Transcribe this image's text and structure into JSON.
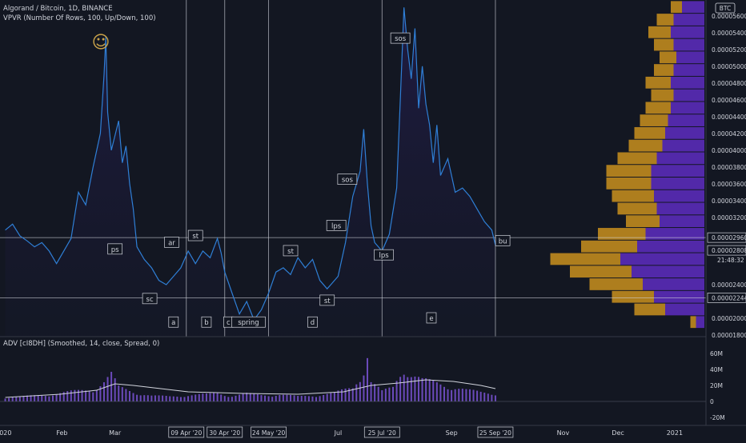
{
  "header": {
    "symbol_line": "Algorand / Bitcoin, 1D, BINANCE",
    "indicator_line": "VPVR (Number Of Rows, 100, Up/Down, 100)",
    "adv_line": "ADV [cI8DH] (Smoothed, 14, close, Spread, 0)"
  },
  "currency_badge": "BTC",
  "countdown": "21:48:32",
  "smiley": "☺",
  "price_axis": {
    "ticks": [
      "0.00005600",
      "0.00005400",
      "0.00005200",
      "0.00005000",
      "0.00004800",
      "0.00004600",
      "0.00004400",
      "0.00004200",
      "0.00004000",
      "0.00003800",
      "0.00003600",
      "0.00003400",
      "0.00003200",
      "0.00002800",
      "0.00002400",
      "0.00002000",
      "0.00001800"
    ],
    "tick_values": [
      5.6,
      5.4,
      5.2,
      5.0,
      4.8,
      4.6,
      4.4,
      4.2,
      4.0,
      3.8,
      3.6,
      3.4,
      3.2,
      2.8,
      2.4,
      2.0,
      1.8
    ],
    "highlighted": [
      {
        "label": "0.00002960",
        "value": 2.96
      },
      {
        "label": "0.00002808",
        "value": 2.808
      },
      {
        "label": "0.00002244",
        "value": 2.244
      }
    ],
    "range": [
      1.8,
      5.75
    ]
  },
  "volume_axis": {
    "ticks": [
      "60M",
      "40M",
      "20M",
      "0",
      "-20M"
    ],
    "tick_values": [
      60,
      40,
      20,
      0,
      -20
    ],
    "range": [
      -25,
      75
    ]
  },
  "time_axis": {
    "months": [
      {
        "label": "2020",
        "day": -1
      },
      {
        "label": "Feb",
        "day": 31
      },
      {
        "label": "Mar",
        "day": 60
      },
      {
        "label": "Jul",
        "day": 182
      },
      {
        "label": "Sep",
        "day": 244
      },
      {
        "label": "Nov",
        "day": 305
      },
      {
        "label": "Dec",
        "day": 335
      },
      {
        "label": "2021",
        "day": 366
      }
    ],
    "date_labels": [
      {
        "label": "09 Apr '20",
        "day": 99
      },
      {
        "label": "30 Apr '20",
        "day": 120
      },
      {
        "label": "24 May '20",
        "day": 144
      },
      {
        "label": "25 Jul '20",
        "day": 206
      },
      {
        "label": "25 Sep '20",
        "day": 268
      }
    ]
  },
  "chart_data": {
    "type": "line",
    "title": "Algorand / Bitcoin, 1D, BINANCE",
    "price_unit": "BTC (×1e-5)",
    "x_unit": "day of year 2020",
    "price_series": [
      {
        "day": 0,
        "price": 3.05
      },
      {
        "day": 4,
        "price": 3.12
      },
      {
        "day": 8,
        "price": 2.98
      },
      {
        "day": 12,
        "price": 2.92
      },
      {
        "day": 16,
        "price": 2.85
      },
      {
        "day": 20,
        "price": 2.9
      },
      {
        "day": 24,
        "price": 2.8
      },
      {
        "day": 28,
        "price": 2.65
      },
      {
        "day": 32,
        "price": 2.8
      },
      {
        "day": 36,
        "price": 2.95
      },
      {
        "day": 40,
        "price": 3.5
      },
      {
        "day": 44,
        "price": 3.35
      },
      {
        "day": 48,
        "price": 3.8
      },
      {
        "day": 52,
        "price": 4.2
      },
      {
        "day": 54,
        "price": 4.9
      },
      {
        "day": 55,
        "price": 5.35
      },
      {
        "day": 56,
        "price": 4.45
      },
      {
        "day": 58,
        "price": 4.0
      },
      {
        "day": 62,
        "price": 4.35
      },
      {
        "day": 64,
        "price": 3.85
      },
      {
        "day": 66,
        "price": 4.05
      },
      {
        "day": 68,
        "price": 3.6
      },
      {
        "day": 70,
        "price": 3.3
      },
      {
        "day": 72,
        "price": 2.85
      },
      {
        "day": 76,
        "price": 2.7
      },
      {
        "day": 80,
        "price": 2.6
      },
      {
        "day": 84,
        "price": 2.45
      },
      {
        "day": 88,
        "price": 2.4
      },
      {
        "day": 92,
        "price": 2.5
      },
      {
        "day": 96,
        "price": 2.6
      },
      {
        "day": 100,
        "price": 2.8
      },
      {
        "day": 104,
        "price": 2.65
      },
      {
        "day": 108,
        "price": 2.8
      },
      {
        "day": 112,
        "price": 2.72
      },
      {
        "day": 116,
        "price": 2.95
      },
      {
        "day": 118,
        "price": 2.78
      },
      {
        "day": 120,
        "price": 2.55
      },
      {
        "day": 124,
        "price": 2.3
      },
      {
        "day": 128,
        "price": 2.05
      },
      {
        "day": 132,
        "price": 2.2
      },
      {
        "day": 136,
        "price": 1.98
      },
      {
        "day": 140,
        "price": 2.1
      },
      {
        "day": 144,
        "price": 2.3
      },
      {
        "day": 148,
        "price": 2.55
      },
      {
        "day": 152,
        "price": 2.6
      },
      {
        "day": 156,
        "price": 2.52
      },
      {
        "day": 160,
        "price": 2.72
      },
      {
        "day": 164,
        "price": 2.6
      },
      {
        "day": 168,
        "price": 2.7
      },
      {
        "day": 172,
        "price": 2.45
      },
      {
        "day": 176,
        "price": 2.35
      },
      {
        "day": 178,
        "price": 2.4
      },
      {
        "day": 182,
        "price": 2.5
      },
      {
        "day": 186,
        "price": 2.9
      },
      {
        "day": 190,
        "price": 3.45
      },
      {
        "day": 194,
        "price": 3.75
      },
      {
        "day": 196,
        "price": 4.25
      },
      {
        "day": 198,
        "price": 3.6
      },
      {
        "day": 200,
        "price": 3.1
      },
      {
        "day": 202,
        "price": 2.9
      },
      {
        "day": 206,
        "price": 2.8
      },
      {
        "day": 210,
        "price": 3.0
      },
      {
        "day": 214,
        "price": 3.55
      },
      {
        "day": 216,
        "price": 4.6
      },
      {
        "day": 218,
        "price": 5.7
      },
      {
        "day": 220,
        "price": 5.2
      },
      {
        "day": 222,
        "price": 4.85
      },
      {
        "day": 224,
        "price": 5.45
      },
      {
        "day": 226,
        "price": 4.5
      },
      {
        "day": 228,
        "price": 5.0
      },
      {
        "day": 230,
        "price": 4.55
      },
      {
        "day": 232,
        "price": 4.3
      },
      {
        "day": 234,
        "price": 3.85
      },
      {
        "day": 236,
        "price": 4.3
      },
      {
        "day": 238,
        "price": 3.7
      },
      {
        "day": 242,
        "price": 3.9
      },
      {
        "day": 246,
        "price": 3.5
      },
      {
        "day": 250,
        "price": 3.55
      },
      {
        "day": 254,
        "price": 3.45
      },
      {
        "day": 258,
        "price": 3.3
      },
      {
        "day": 262,
        "price": 3.15
      },
      {
        "day": 266,
        "price": 3.05
      },
      {
        "day": 268,
        "price": 2.87
      }
    ],
    "volume_series": [
      {
        "day": 0,
        "v": 6
      },
      {
        "day": 10,
        "v": 7
      },
      {
        "day": 20,
        "v": 9
      },
      {
        "day": 30,
        "v": 12
      },
      {
        "day": 40,
        "v": 15
      },
      {
        "day": 48,
        "v": 18
      },
      {
        "day": 54,
        "v": 28
      },
      {
        "day": 58,
        "v": 38
      },
      {
        "day": 62,
        "v": 20
      },
      {
        "day": 70,
        "v": 14
      },
      {
        "day": 80,
        "v": 8
      },
      {
        "day": 90,
        "v": 7
      },
      {
        "day": 100,
        "v": 9
      },
      {
        "day": 110,
        "v": 10
      },
      {
        "day": 116,
        "v": 12
      },
      {
        "day": 124,
        "v": 8
      },
      {
        "day": 132,
        "v": 11
      },
      {
        "day": 140,
        "v": 9
      },
      {
        "day": 150,
        "v": 10
      },
      {
        "day": 160,
        "v": 7
      },
      {
        "day": 170,
        "v": 9
      },
      {
        "day": 180,
        "v": 12
      },
      {
        "day": 190,
        "v": 20
      },
      {
        "day": 196,
        "v": 48
      },
      {
        "day": 198,
        "v": 70
      },
      {
        "day": 200,
        "v": 28
      },
      {
        "day": 206,
        "v": 14
      },
      {
        "day": 212,
        "v": 20
      },
      {
        "day": 218,
        "v": 52
      },
      {
        "day": 222,
        "v": 40
      },
      {
        "day": 228,
        "v": 30
      },
      {
        "day": 236,
        "v": 26
      },
      {
        "day": 244,
        "v": 22
      },
      {
        "day": 252,
        "v": 16
      },
      {
        "day": 260,
        "v": 13
      },
      {
        "day": 268,
        "v": 12
      }
    ],
    "adv_smoothed": [
      {
        "day": 0,
        "v": 5
      },
      {
        "day": 30,
        "v": 9
      },
      {
        "day": 50,
        "v": 14
      },
      {
        "day": 60,
        "v": 22
      },
      {
        "day": 70,
        "v": 20
      },
      {
        "day": 85,
        "v": 16
      },
      {
        "day": 100,
        "v": 12
      },
      {
        "day": 130,
        "v": 10
      },
      {
        "day": 160,
        "v": 9
      },
      {
        "day": 185,
        "v": 12
      },
      {
        "day": 200,
        "v": 20
      },
      {
        "day": 215,
        "v": 23
      },
      {
        "day": 230,
        "v": 27
      },
      {
        "day": 245,
        "v": 25
      },
      {
        "day": 260,
        "v": 20
      },
      {
        "day": 268,
        "v": 16
      }
    ],
    "vpvr_profile": [
      {
        "price": 5.7,
        "up": 0.4,
        "down": 0.2
      },
      {
        "price": 5.55,
        "up": 0.55,
        "down": 0.3
      },
      {
        "price": 5.4,
        "up": 0.6,
        "down": 0.4
      },
      {
        "price": 5.25,
        "up": 0.55,
        "down": 0.35
      },
      {
        "price": 5.1,
        "up": 0.5,
        "down": 0.3
      },
      {
        "price": 4.95,
        "up": 0.55,
        "down": 0.35
      },
      {
        "price": 4.8,
        "up": 0.6,
        "down": 0.45
      },
      {
        "price": 4.65,
        "up": 0.55,
        "down": 0.4
      },
      {
        "price": 4.5,
        "up": 0.6,
        "down": 0.45
      },
      {
        "price": 4.35,
        "up": 0.65,
        "down": 0.5
      },
      {
        "price": 4.2,
        "up": 0.7,
        "down": 0.55
      },
      {
        "price": 4.05,
        "up": 0.75,
        "down": 0.6
      },
      {
        "price": 3.9,
        "up": 0.85,
        "down": 0.7
      },
      {
        "price": 3.75,
        "up": 0.95,
        "down": 0.8
      },
      {
        "price": 3.6,
        "up": 0.95,
        "down": 0.8
      },
      {
        "price": 3.45,
        "up": 0.9,
        "down": 0.75
      },
      {
        "price": 3.3,
        "up": 0.85,
        "down": 0.7
      },
      {
        "price": 3.15,
        "up": 0.8,
        "down": 0.6
      },
      {
        "price": 3.0,
        "up": 1.05,
        "down": 0.85
      },
      {
        "price": 2.85,
        "up": 1.2,
        "down": 1.0
      },
      {
        "price": 2.7,
        "up": 1.5,
        "down": 1.25
      },
      {
        "price": 2.55,
        "up": 1.3,
        "down": 1.1
      },
      {
        "price": 2.4,
        "up": 1.1,
        "down": 0.95
      },
      {
        "price": 2.25,
        "up": 0.9,
        "down": 0.75
      },
      {
        "price": 2.1,
        "up": 0.7,
        "down": 0.55
      },
      {
        "price": 1.95,
        "up": 0.15,
        "down": 0.1
      }
    ],
    "wyckoff_labels": [
      {
        "text": "ps",
        "day": 60,
        "price": 2.82
      },
      {
        "text": "sc",
        "day": 79,
        "price": 2.23
      },
      {
        "text": "ar",
        "day": 91,
        "price": 2.9
      },
      {
        "text": "st",
        "day": 104,
        "price": 2.98
      },
      {
        "text": "a",
        "day": 92,
        "price": 1.95
      },
      {
        "text": "b",
        "day": 110,
        "price": 1.95
      },
      {
        "text": "c",
        "day": 122,
        "price": 1.95
      },
      {
        "text": "spring",
        "day": 133,
        "price": 1.95
      },
      {
        "text": "st",
        "day": 156,
        "price": 2.8
      },
      {
        "text": "d",
        "day": 168,
        "price": 1.95
      },
      {
        "text": "st",
        "day": 176,
        "price": 2.21
      },
      {
        "text": "lps",
        "day": 181,
        "price": 3.1
      },
      {
        "text": "sos",
        "day": 187,
        "price": 3.65
      },
      {
        "text": "lps",
        "day": 207,
        "price": 2.75
      },
      {
        "text": "sos",
        "day": 216,
        "price": 5.33
      },
      {
        "text": "e",
        "day": 233,
        "price": 2.0
      },
      {
        "text": "bu",
        "day": 272,
        "price": 2.92
      }
    ],
    "vertical_lines_days": [
      99,
      120,
      144,
      206,
      268
    ],
    "horizontal_levels": [
      2.96,
      2.244
    ]
  }
}
